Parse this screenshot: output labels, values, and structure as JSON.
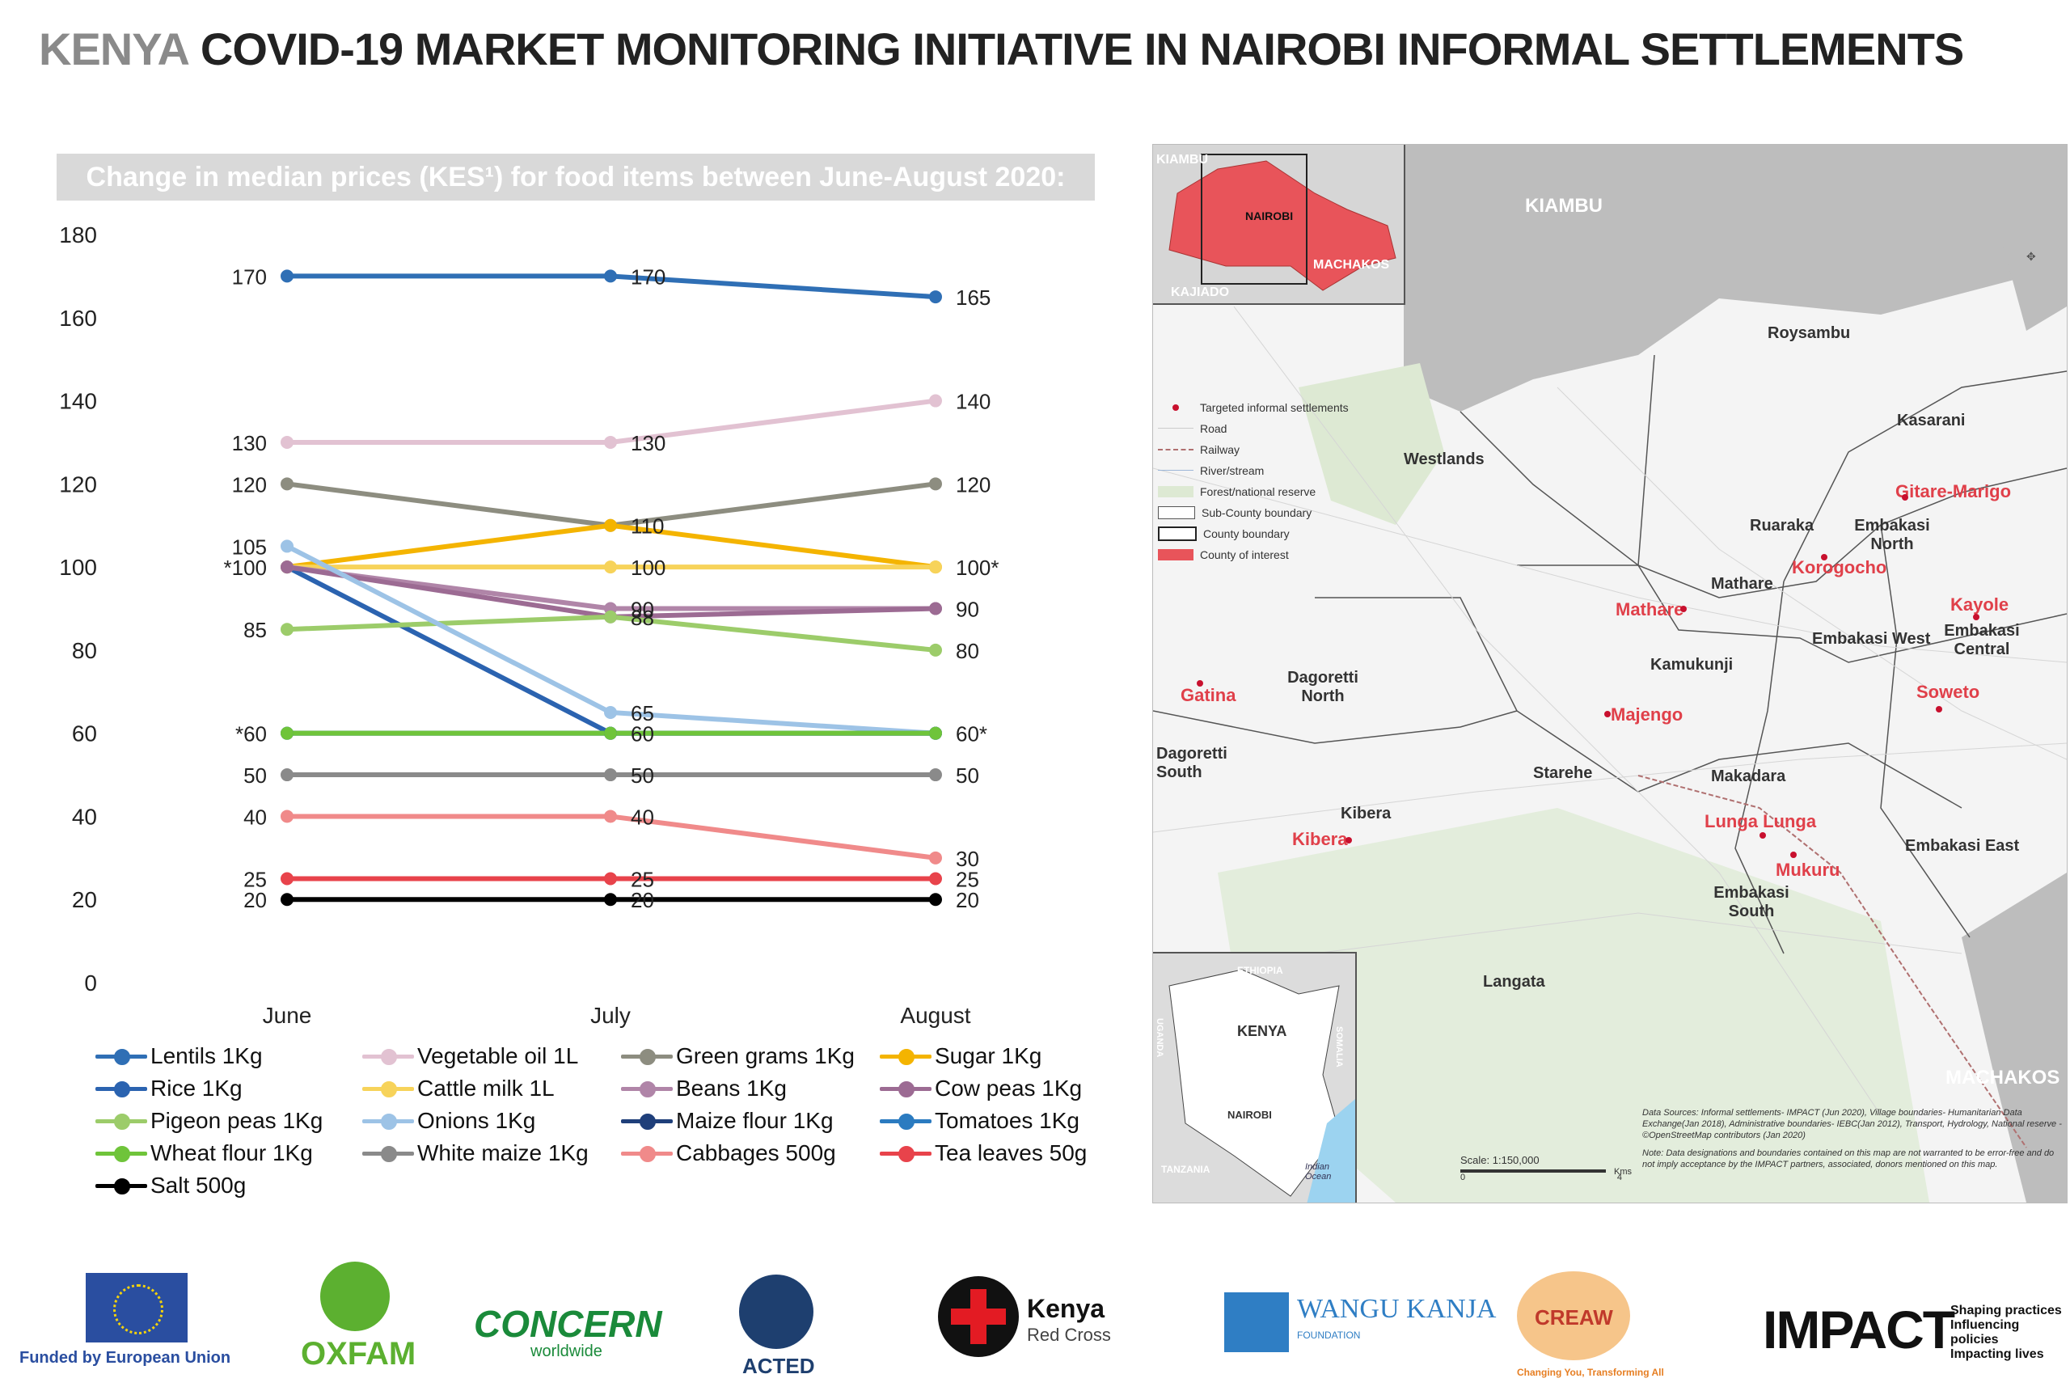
{
  "header": {
    "country": "KENYA",
    "title": "COVID-19 MARKET MONITORING INITIATIVE IN NAIROBI INFORMAL SETTLEMENTS"
  },
  "chart_banner": "Change in median prices (KES¹) for food items between June-August 2020:",
  "chart_data": {
    "type": "line",
    "title": "Change in median prices (KES¹) for food items between June-August 2020:",
    "categories": [
      "June",
      "July",
      "August"
    ],
    "ylim": [
      0,
      180
    ],
    "yticks": [
      0,
      20,
      40,
      60,
      80,
      100,
      120,
      140,
      160,
      180
    ],
    "grid": false,
    "legend_position": "bottom",
    "series": [
      {
        "name": "Lentils 1Kg",
        "values": [
          170,
          170,
          165
        ],
        "color": "#2f6fb5",
        "labels": [
          "170",
          "170",
          "165"
        ]
      },
      {
        "name": "Vegetable oil 1L",
        "values": [
          130,
          130,
          140
        ],
        "color": "#e2c2d2",
        "labels": [
          "130",
          "130",
          "140"
        ]
      },
      {
        "name": "Green grams 1Kg",
        "values": [
          120,
          110,
          120
        ],
        "color": "#8d8d80",
        "labels": [
          "120",
          "",
          "120"
        ]
      },
      {
        "name": "Sugar 1Kg",
        "values": [
          100,
          110,
          100
        ],
        "color": "#f4b400",
        "labels": [
          "",
          "110",
          ""
        ]
      },
      {
        "name": "Rice 1Kg",
        "values": [
          100,
          60,
          60
        ],
        "color": "#2b63b0",
        "labels": [
          "",
          "",
          ""
        ]
      },
      {
        "name": "Cattle milk 1L",
        "values": [
          100,
          100,
          100
        ],
        "color": "#f7d35a",
        "labels": [
          "*100",
          "100",
          "100*"
        ]
      },
      {
        "name": "Beans 1Kg",
        "values": [
          100,
          90,
          90
        ],
        "color": "#b085a8",
        "labels": [
          "",
          "90",
          ""
        ]
      },
      {
        "name": "Cow peas 1Kg",
        "values": [
          100,
          88,
          90
        ],
        "color": "#9c6b93",
        "labels": [
          "",
          "88",
          "90"
        ]
      },
      {
        "name": "Pigeon peas 1Kg",
        "values": [
          85,
          88,
          80
        ],
        "color": "#9ccc6a",
        "labels": [
          "85",
          "",
          "80"
        ]
      },
      {
        "name": "Onions 1Kg",
        "values": [
          105,
          65,
          60
        ],
        "color": "#9dc3e6",
        "labels": [
          "105",
          "65",
          ""
        ]
      },
      {
        "name": "Maize flour 1Kg",
        "values": [
          60,
          60,
          60
        ],
        "color": "#1f3f7a",
        "labels": [
          "",
          "",
          ""
        ]
      },
      {
        "name": "Tomatoes 1Kg",
        "values": [
          60,
          60,
          60
        ],
        "color": "#2b7bc0",
        "labels": [
          "",
          "",
          ""
        ]
      },
      {
        "name": "Wheat flour 1Kg",
        "values": [
          60,
          60,
          60
        ],
        "color": "#6fc43a",
        "labels": [
          "*60",
          "60",
          "60*"
        ]
      },
      {
        "name": "White maize 1Kg",
        "values": [
          50,
          50,
          50
        ],
        "color": "#8a8a8a",
        "labels": [
          "50",
          "50",
          "50"
        ]
      },
      {
        "name": "Cabbages 500g",
        "values": [
          40,
          40,
          30
        ],
        "color": "#f08a8a",
        "labels": [
          "40",
          "40",
          "30"
        ]
      },
      {
        "name": "Tea leaves 50g",
        "values": [
          25,
          25,
          25
        ],
        "color": "#e8434b",
        "labels": [
          "25",
          "25",
          "25"
        ]
      },
      {
        "name": "Salt 500g",
        "values": [
          20,
          20,
          20
        ],
        "color": "#000000",
        "labels": [
          "20",
          "20",
          "20"
        ]
      }
    ]
  },
  "map": {
    "inset_top": {
      "kiambu": "KIAMBU",
      "nairobi": "NAIROBI",
      "machakos": "MACHAKOS",
      "kajiado": "KAJIADO"
    },
    "region_labels": {
      "kiambu": "KIAMBU",
      "machakos": "MACHAKOS"
    },
    "subcounties": [
      "Roysambu",
      "Kasarani",
      "Westlands",
      "Ruaraka",
      "Embakasi North",
      "Mathare",
      "Embakasi West",
      "Embakasi Central",
      "Kamukunji",
      "Dagoretti North",
      "Dagoretti South",
      "Starehe",
      "Makadara",
      "Kibera",
      "Embakasi East",
      "Embakasi South",
      "Langata"
    ],
    "settlements": [
      "Gitare-Marigo",
      "Korogocho",
      "Mathare",
      "Kayole",
      "Soweto",
      "Gatina",
      "Majengo",
      "Kibera",
      "Lunga Lunga",
      "Mukuru"
    ],
    "legend": [
      "Targeted informal settlements",
      "Road",
      "Railway",
      "River/stream",
      "Forest/national reserve",
      "Sub-County boundary",
      "County boundary",
      "County of interest"
    ],
    "inset_bottom": {
      "ethiopia": "ETHIOPIA",
      "kenya": "KENYA",
      "uganda": "UGANDA",
      "somalia": "SOMALIA",
      "nairobi": "NAIROBI",
      "tanzania": "TANZANIA",
      "ocean": "Indian Ocean"
    },
    "scale": "Scale: 1:150,000",
    "scale_ticks": [
      "0",
      "4"
    ],
    "scale_unit": "Kms",
    "sources": "Data Sources: Informal settlements- IMPACT (Jun 2020), Village boundaries- Humanitarian Data Exchange(Jan 2018), Administrative boundaries- IEBC(Jan 2012), Transport, Hydrology, National reserve - ©OpenStreetMap contributors (Jan 2020)",
    "note": "Note: Data designations and boundaries contained on this map are not warranted to be error-free and do not imply acceptance by the IMPACT partners, associated, donors mentioned on this map."
  },
  "logos": {
    "eu": "Funded by European Union",
    "oxfam": "OXFAM",
    "concern": "CONCERN",
    "concern_sub": "worldwide",
    "acted": "ACTED",
    "redcross_1": "Kenya",
    "redcross_2": "Red Cross",
    "wangu": "WANGU KANJA",
    "wangu_sub": "FOUNDATION",
    "creaw": "CREAW",
    "creaw_tag": "Changing You, Transforming All",
    "impact": "IMPACT",
    "impact_tag_1": "Shaping practices",
    "impact_tag_2": "Influencing policies",
    "impact_tag_3": "Impacting lives"
  }
}
